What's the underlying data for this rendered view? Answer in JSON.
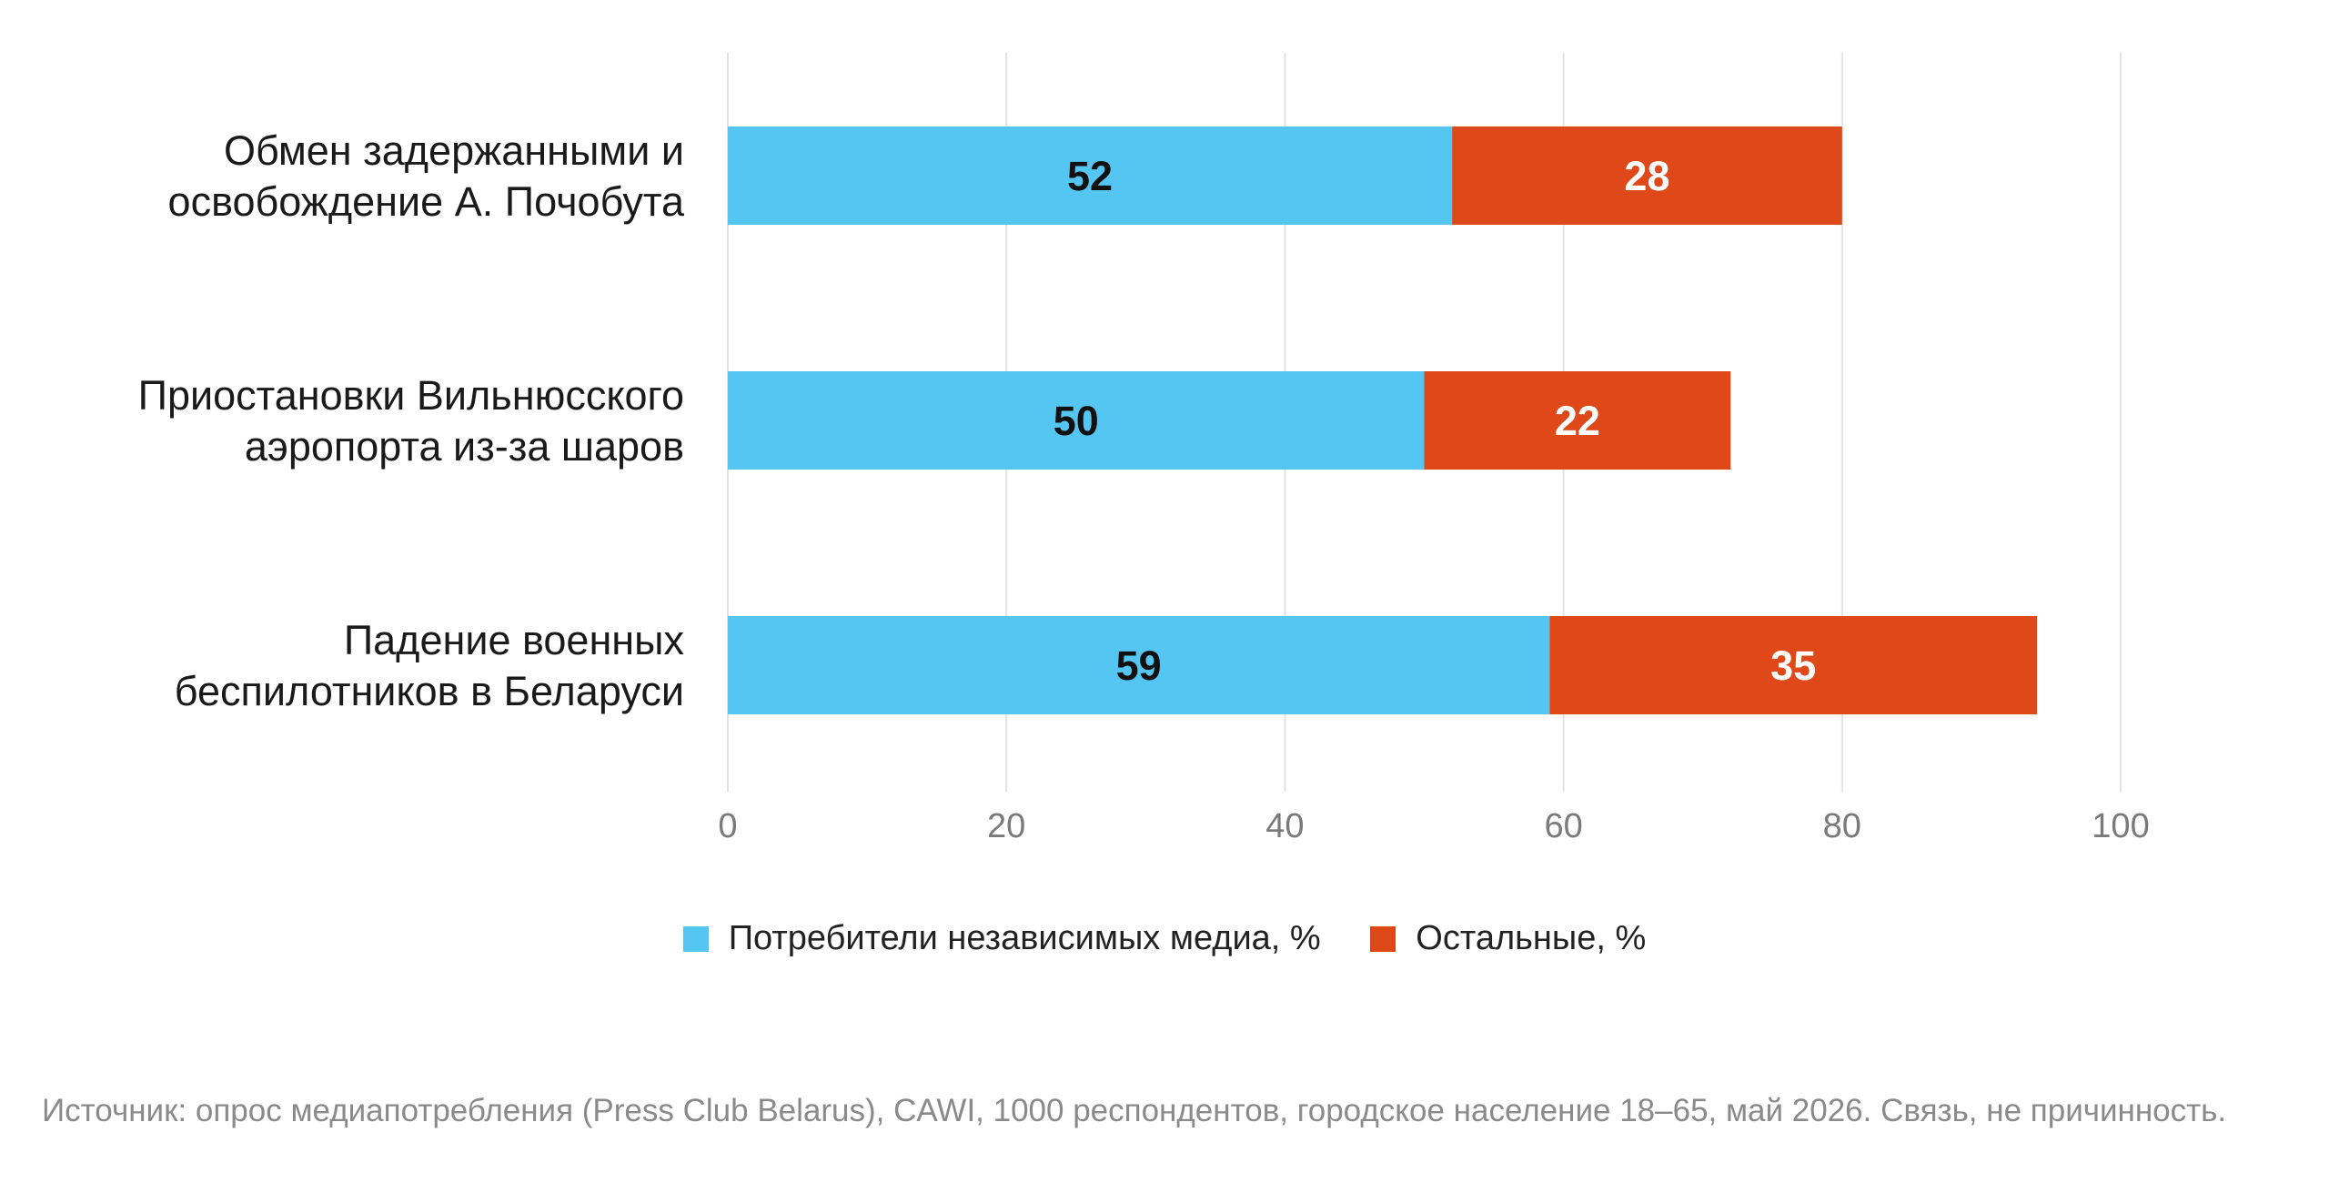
{
  "chart_data": {
    "type": "bar",
    "orientation": "horizontal",
    "stacked": true,
    "categories": [
      [
        "Обмен задержанными и",
        "освобождение А. Почобута"
      ],
      [
        "Приостановки Вильнюсского",
        "аэропорта из-за шаров"
      ],
      [
        "Падение военных",
        "беспилотников в Беларуси"
      ]
    ],
    "series": [
      {
        "name": "Потребители независимых медиа, %",
        "values": [
          52,
          50,
          59
        ],
        "color": "#55c6f2",
        "label_color": "#111111"
      },
      {
        "name": "Остальные, %",
        "values": [
          28,
          22,
          35
        ],
        "color": "#df4818",
        "label_color": "#ffffff"
      }
    ],
    "xlim": [
      0,
      100
    ],
    "xticks": [
      0,
      20,
      40,
      60,
      80,
      100
    ],
    "grid": true,
    "legend_position": "bottom-center",
    "source": "Источник: опрос медиапотребления (Press Club Belarus), CAWI, 1000 респондентов, городское население 18–65, май 2026. Связь, не причинность."
  }
}
